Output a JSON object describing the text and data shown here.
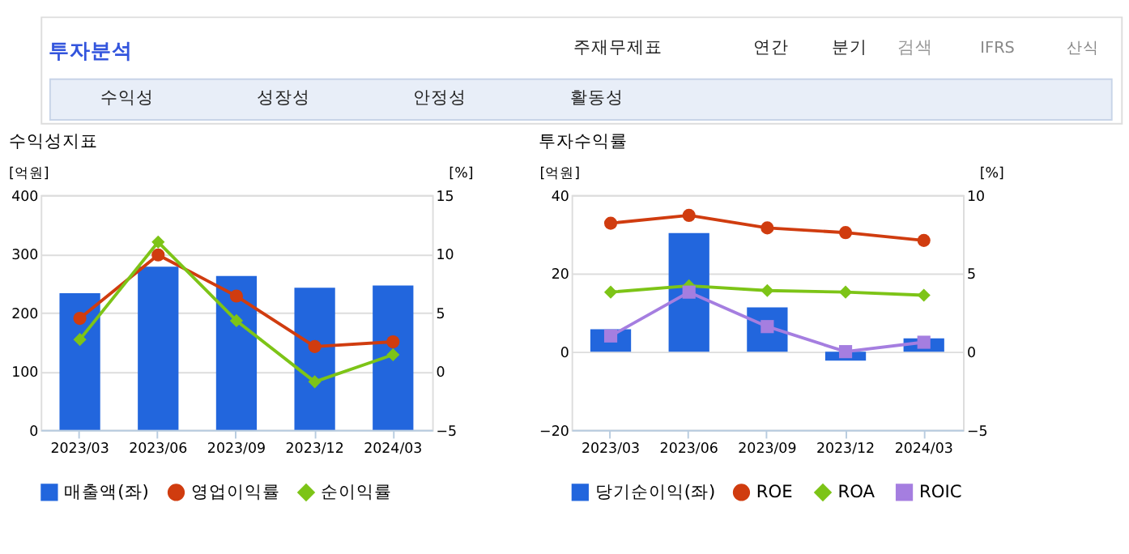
{
  "chart_data": [
    {
      "type": "bar",
      "title": "수익성지표",
      "annotations": [
        "투자분석",
        "주재무제표",
        "연간",
        "분기",
        "검색",
        "IFRS",
        "산식",
        "수익성",
        "성장성",
        "안정성",
        "활동성"
      ],
      "categories": [
        "2023/03",
        "2023/06",
        "2023/09",
        "2023/12",
        "2024/03"
      ],
      "ylabel": "[억원]",
      "y2label": "[%]",
      "ylim": [
        0,
        400
      ],
      "yticks": [
        0,
        100,
        200,
        300,
        400
      ],
      "y2lim": [
        -5,
        15
      ],
      "y2ticks": [
        -5,
        0,
        5,
        10,
        15
      ],
      "grid": "y",
      "legend": "bottom",
      "series": [
        {
          "name": "매출액(좌)",
          "color": "#2266dd",
          "values": [
            233,
            278,
            262,
            242,
            246
          ]
        },
        {
          "name": "영업이익률",
          "type": "line",
          "axis": "y2",
          "marker": "circle",
          "color": "#d03c0f",
          "values": [
            4.5,
            9.9,
            6.4,
            2.1,
            2.5
          ]
        },
        {
          "name": "순이익률",
          "type": "line",
          "axis": "y2",
          "marker": "diamond",
          "color": "#7dc417",
          "values": [
            2.7,
            11.0,
            4.3,
            -0.9,
            1.4
          ]
        }
      ]
    },
    {
      "type": "bar",
      "title": "투자수익률",
      "categories": [
        "2023/03",
        "2023/06",
        "2023/09",
        "2023/12",
        "2024/03"
      ],
      "ylabel": "[억원]",
      "y2label": "[%]",
      "ylim": [
        -20,
        40
      ],
      "yticks": [
        -20,
        0,
        20,
        40
      ],
      "y2lim": [
        -5,
        10
      ],
      "y2ticks": [
        -5,
        0,
        5,
        10
      ],
      "grid": "y",
      "legend": "bottom",
      "series": [
        {
          "name": "당기순이익(좌)",
          "color": "#2266dd",
          "values": [
            5.7,
            30.3,
            11.3,
            -2.3,
            3.4
          ]
        },
        {
          "name": "ROE",
          "type": "line",
          "axis": "y2",
          "marker": "circle",
          "color": "#d03c0f",
          "values": [
            8.2,
            8.7,
            7.9,
            7.6,
            7.1
          ]
        },
        {
          "name": "ROA",
          "type": "line",
          "axis": "y2",
          "marker": "diamond",
          "color": "#7dc417",
          "values": [
            3.8,
            4.2,
            3.9,
            3.8,
            3.6
          ]
        },
        {
          "name": "ROIC",
          "type": "line",
          "axis": "y2",
          "marker": "square",
          "color": "#a57ee0",
          "values": [
            1.0,
            3.8,
            1.6,
            0.0,
            0.6
          ]
        }
      ]
    }
  ]
}
